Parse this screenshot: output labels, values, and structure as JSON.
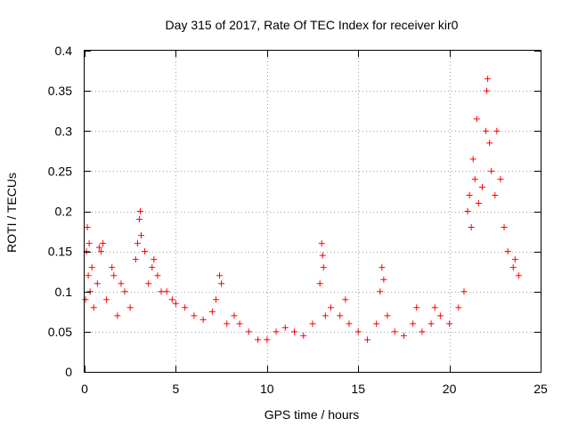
{
  "chart_data": {
    "type": "scatter",
    "title": "Day 315 of 2017, Rate Of TEC Index for receiver kir0",
    "xlabel": "GPS time / hours",
    "ylabel": "ROTI / TECUs",
    "xlim": [
      0,
      25
    ],
    "ylim": [
      0,
      0.4
    ],
    "x_ticks": [
      "0",
      "5",
      "10",
      "15",
      "20",
      "25"
    ],
    "y_ticks": [
      "0",
      "0.05",
      "0.1",
      "0.15",
      "0.2",
      "0.25",
      "0.3",
      "0.35",
      "0.4"
    ],
    "x_tick_values": [
      0,
      5,
      10,
      15,
      20,
      25
    ],
    "y_tick_values": [
      0,
      0.05,
      0.1,
      0.15,
      0.2,
      0.25,
      0.3,
      0.35,
      0.4
    ],
    "grid": true,
    "marker": "+",
    "point_color": "#ff0000",
    "series": [
      {
        "values": [
          [
            0.05,
            0.09
          ],
          [
            0.1,
            0.15
          ],
          [
            0.15,
            0.18
          ],
          [
            0.2,
            0.12
          ],
          [
            0.25,
            0.16
          ],
          [
            0.3,
            0.1
          ],
          [
            0.4,
            0.13
          ],
          [
            0.5,
            0.08
          ],
          [
            0.7,
            0.11
          ],
          [
            0.8,
            0.155
          ],
          [
            0.9,
            0.15
          ],
          [
            1.0,
            0.16
          ],
          [
            1.2,
            0.09
          ],
          [
            1.5,
            0.13
          ],
          [
            1.6,
            0.12
          ],
          [
            1.8,
            0.07
          ],
          [
            2.0,
            0.11
          ],
          [
            2.2,
            0.1
          ],
          [
            2.5,
            0.08
          ],
          [
            2.8,
            0.14
          ],
          [
            2.9,
            0.16
          ],
          [
            3.0,
            0.19
          ],
          [
            3.05,
            0.2
          ],
          [
            3.1,
            0.17
          ],
          [
            3.3,
            0.15
          ],
          [
            3.5,
            0.11
          ],
          [
            3.7,
            0.13
          ],
          [
            3.8,
            0.14
          ],
          [
            4.0,
            0.12
          ],
          [
            4.2,
            0.1
          ],
          [
            4.5,
            0.1
          ],
          [
            4.8,
            0.09
          ],
          [
            5.0,
            0.085
          ],
          [
            5.5,
            0.08
          ],
          [
            6.0,
            0.07
          ],
          [
            6.5,
            0.065
          ],
          [
            7.0,
            0.075
          ],
          [
            7.2,
            0.09
          ],
          [
            7.4,
            0.12
          ],
          [
            7.5,
            0.11
          ],
          [
            7.8,
            0.06
          ],
          [
            8.2,
            0.07
          ],
          [
            8.5,
            0.06
          ],
          [
            9.0,
            0.05
          ],
          [
            9.5,
            0.04
          ],
          [
            10.0,
            0.04
          ],
          [
            10.5,
            0.05
          ],
          [
            11.0,
            0.055
          ],
          [
            11.5,
            0.05
          ],
          [
            12.0,
            0.045
          ],
          [
            12.5,
            0.06
          ],
          [
            12.9,
            0.11
          ],
          [
            13.0,
            0.16
          ],
          [
            13.05,
            0.145
          ],
          [
            13.1,
            0.13
          ],
          [
            13.2,
            0.07
          ],
          [
            13.5,
            0.08
          ],
          [
            14.0,
            0.07
          ],
          [
            14.3,
            0.09
          ],
          [
            14.5,
            0.06
          ],
          [
            15.0,
            0.05
          ],
          [
            15.5,
            0.04
          ],
          [
            16.0,
            0.06
          ],
          [
            16.2,
            0.1
          ],
          [
            16.3,
            0.13
          ],
          [
            16.4,
            0.115
          ],
          [
            16.6,
            0.07
          ],
          [
            17.0,
            0.05
          ],
          [
            17.5,
            0.045
          ],
          [
            18.0,
            0.06
          ],
          [
            18.2,
            0.08
          ],
          [
            18.5,
            0.05
          ],
          [
            19.0,
            0.06
          ],
          [
            19.2,
            0.08
          ],
          [
            19.5,
            0.07
          ],
          [
            20.0,
            0.06
          ],
          [
            20.5,
            0.08
          ],
          [
            20.8,
            0.1
          ],
          [
            21.0,
            0.2
          ],
          [
            21.1,
            0.22
          ],
          [
            21.2,
            0.18
          ],
          [
            21.3,
            0.265
          ],
          [
            21.4,
            0.24
          ],
          [
            21.5,
            0.315
          ],
          [
            21.6,
            0.21
          ],
          [
            21.8,
            0.23
          ],
          [
            22.0,
            0.3
          ],
          [
            22.05,
            0.35
          ],
          [
            22.1,
            0.365
          ],
          [
            22.2,
            0.285
          ],
          [
            22.3,
            0.25
          ],
          [
            22.5,
            0.22
          ],
          [
            22.6,
            0.3
          ],
          [
            22.8,
            0.24
          ],
          [
            23.0,
            0.18
          ],
          [
            23.2,
            0.15
          ],
          [
            23.5,
            0.13
          ],
          [
            23.6,
            0.14
          ],
          [
            23.8,
            0.12
          ]
        ]
      }
    ]
  }
}
